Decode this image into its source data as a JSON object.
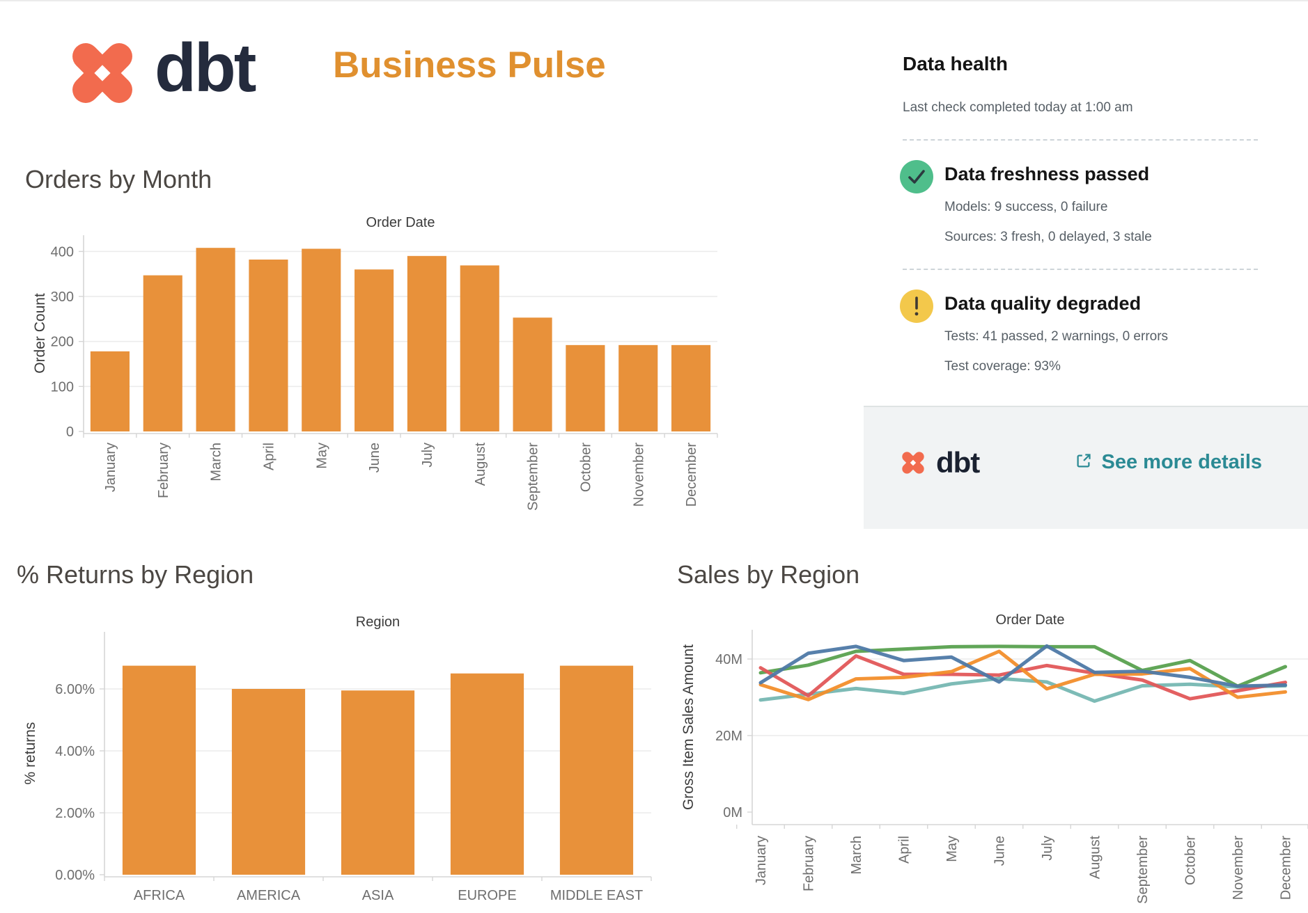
{
  "header": {
    "brand": "dbt",
    "title": "Business Pulse",
    "title_color": "#E0902F",
    "logo_color": "#F26B4E",
    "brand_color": "#242B3D"
  },
  "data_health": {
    "title": "Data health",
    "last_check": "Last check completed today at 1:00 am",
    "freshness": {
      "icon": "check-circle",
      "icon_color": "#4FBE8B",
      "status_title": "Data freshness passed",
      "models_line": "Models: 9 success, 0 failure",
      "sources_line": "Sources: 3 fresh, 0 delayed, 3 stale"
    },
    "quality": {
      "icon": "warning-circle",
      "icon_color": "#F3C84B",
      "status_title": "Data quality degraded",
      "tests_line": "Tests: 41 passed, 2 warnings, 0 errors",
      "coverage_line": "Test coverage: 93%"
    },
    "footer": {
      "brand": "dbt",
      "link_label": "See more details",
      "link_color": "#2B8A94"
    }
  },
  "chart_data": [
    {
      "id": "orders-by-month",
      "type": "bar",
      "title": "Orders by Month",
      "top_axis_title": "Order Date",
      "ylabel": "Order Count",
      "categories": [
        "January",
        "February",
        "March",
        "April",
        "May",
        "June",
        "July",
        "August",
        "September",
        "October",
        "November",
        "December"
      ],
      "values": [
        178,
        347,
        408,
        382,
        406,
        360,
        390,
        369,
        253,
        192,
        192,
        192
      ],
      "ytick_values": [
        0,
        100,
        200,
        300,
        400
      ],
      "ytick_labels": [
        "0",
        "100",
        "200",
        "300",
        "400"
      ],
      "ylim": [
        0,
        436
      ],
      "grid": true,
      "bar_color": "#E8913A"
    },
    {
      "id": "returns-by-region",
      "type": "bar",
      "title": "% Returns by Region",
      "top_axis_title": "Region",
      "ylabel": "% returns",
      "categories": [
        "AFRICA",
        "AMERICA",
        "ASIA",
        "EUROPE",
        "MIDDLE EAST"
      ],
      "values": [
        6.75,
        6.0,
        5.95,
        6.5,
        6.75
      ],
      "ytick_values": [
        0,
        2,
        4,
        6
      ],
      "ytick_labels": [
        "0.00%",
        "2.00%",
        "4.00%",
        "6.00%"
      ],
      "ylim": [
        0,
        7.8
      ],
      "grid": true,
      "bar_color": "#E8913A"
    },
    {
      "id": "sales-by-region",
      "type": "line",
      "title": "Sales by Region",
      "top_axis_title": "Order Date",
      "ylabel": "Gross Item Sales Amount",
      "categories": [
        "January",
        "February",
        "March",
        "April",
        "May",
        "June",
        "July",
        "August",
        "September",
        "October",
        "November",
        "December"
      ],
      "ytick_values": [
        0,
        20,
        40
      ],
      "ytick_labels": [
        "0M",
        "20M",
        "40M"
      ],
      "ylim": [
        0,
        47.5
      ],
      "grid": true,
      "legend": "none",
      "units": "millions",
      "series": [
        {
          "name": "teal",
          "color": "#76B7B2",
          "values": [
            29.3,
            30.8,
            32.3,
            31.0,
            33.5,
            34.9,
            34.0,
            29.0,
            33.0,
            33.4,
            32.7,
            33.0
          ]
        },
        {
          "name": "green",
          "color": "#59A14F",
          "values": [
            36.4,
            38.4,
            42.0,
            42.6,
            43.2,
            43.3,
            43.2,
            43.2,
            37.0,
            39.6,
            32.9,
            38.0
          ]
        },
        {
          "name": "red",
          "color": "#E15759",
          "values": [
            37.7,
            30.4,
            40.8,
            36.0,
            36.0,
            35.8,
            38.3,
            36.3,
            34.5,
            29.6,
            31.7,
            33.9
          ]
        },
        {
          "name": "orange",
          "color": "#F28E2B",
          "values": [
            33.3,
            29.4,
            34.8,
            35.2,
            36.7,
            42.0,
            32.2,
            36.0,
            36.1,
            37.5,
            30.0,
            31.4
          ]
        },
        {
          "name": "blue",
          "color": "#4E79A7",
          "values": [
            33.8,
            41.5,
            43.3,
            39.6,
            40.5,
            34.0,
            43.4,
            36.5,
            36.8,
            35.2,
            32.9,
            33.2
          ]
        }
      ]
    }
  ]
}
